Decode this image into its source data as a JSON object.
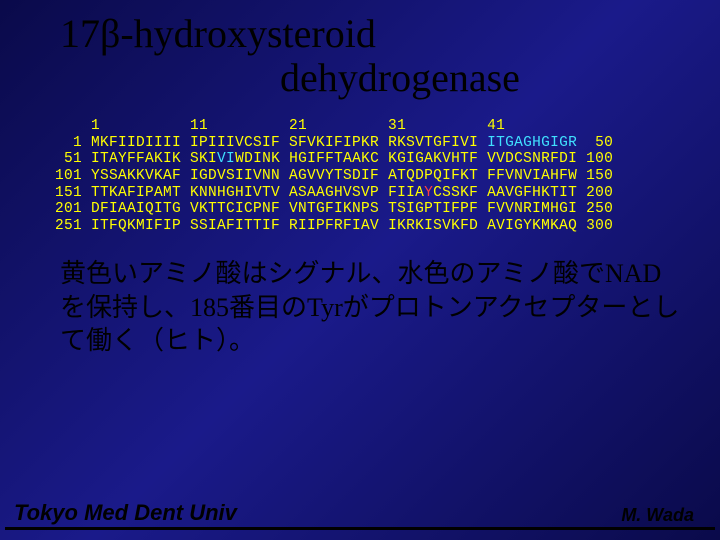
{
  "title_line1": "17β-hydroxysteroid",
  "title_line2": "dehydrogenase",
  "seq": {
    "col_headers": [
      "1",
      "11",
      "21",
      "31",
      "41"
    ],
    "rows": [
      {
        "start": "1",
        "cols": [
          "MKFIIDIIII",
          "IPIIIVCSIF",
          "SFVKIFIPKR",
          "RKSVTGFIVI",
          "ITGAGHGIGR"
        ],
        "end": "50",
        "cyan_col": 4
      },
      {
        "start": "51",
        "cols": [
          "ITAYFFAKIK",
          "SKIVIWDINK",
          "HGIFFTAAKC",
          "KGIGAKVHTF",
          "VVDCSNRFDI"
        ],
        "end": "100",
        "cyan_col": 1,
        "cyan_range": [
          3,
          5
        ]
      },
      {
        "start": "101",
        "cols": [
          "YSSAKKVKAF",
          "IGDVSIIVNN",
          "AGVVYTSDIF",
          "ATQDPQIFKT",
          "FFVNVIAHFW"
        ],
        "end": "150"
      },
      {
        "start": "151",
        "cols": [
          "TTKAFIPAMT",
          "KNNHGHIVTV",
          "ASAAGHVSVP",
          "FIIAYCSSKF",
          "AAVGFHKTIT"
        ],
        "end": "200",
        "red_pos": {
          "col": 3,
          "idx": 4
        }
      },
      {
        "start": "201",
        "cols": [
          "DFIAAIQITG",
          "VKTTCICPNF",
          "VNTGFIKNPS",
          "TSIGPTIFPF",
          "FVVNRIMHGI"
        ],
        "end": "250"
      },
      {
        "start": "251",
        "cols": [
          "ITFQKMIFIP",
          "SSIAFITTIF",
          "RIIPFRFIAV",
          "IKRKISVKFD",
          "AVIGYKMKAQ"
        ],
        "end": "300"
      }
    ]
  },
  "description": "黄色いアミノ酸はシグナル、水色のアミノ酸でNADを保持し、185番目のTyrがプロトンアクセプターとして働く（ヒト）。",
  "footer_left": "Tokyo Med Dent Univ",
  "footer_right": "M. Wada"
}
